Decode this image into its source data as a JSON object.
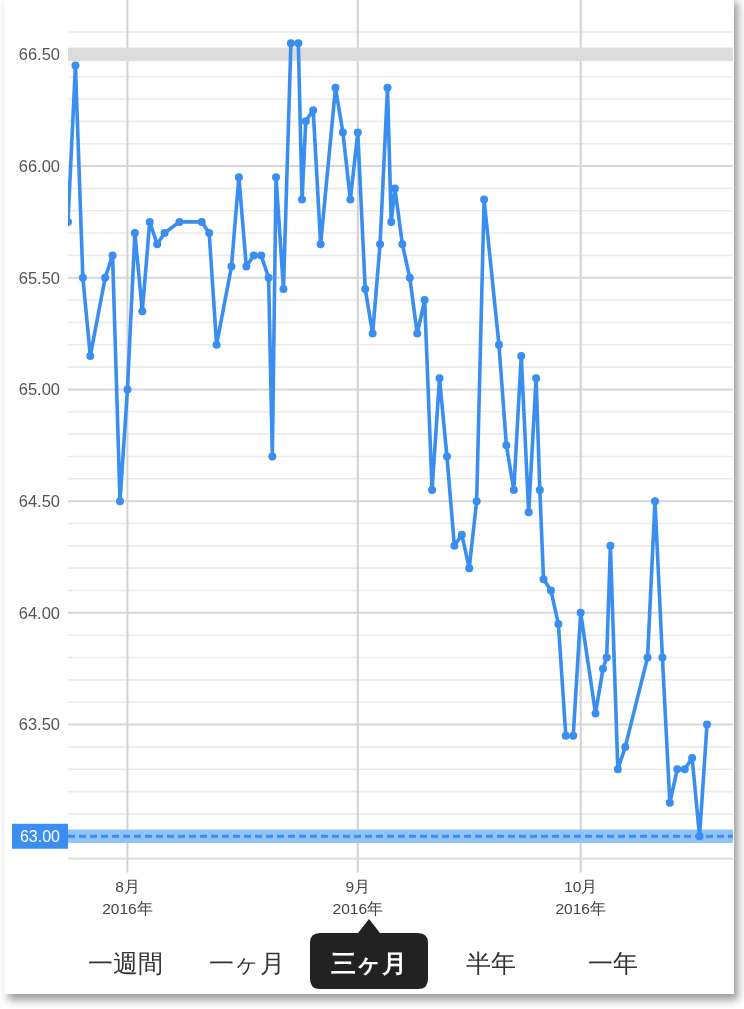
{
  "chart_data": {
    "type": "line",
    "x": [
      "2016-07-24",
      "2016-07-25",
      "2016-07-26",
      "2016-07-27",
      "2016-07-29",
      "2016-07-30",
      "2016-07-31",
      "2016-08-01",
      "2016-08-02",
      "2016-08-03",
      "2016-08-04",
      "2016-08-05",
      "2016-08-06",
      "2016-08-08",
      "2016-08-11",
      "2016-08-12",
      "2016-08-13",
      "2016-08-15",
      "2016-08-16",
      "2016-08-17",
      "2016-08-18",
      "2016-08-19",
      "2016-08-20",
      "2016-08-20T12:00",
      "2016-08-21",
      "2016-08-22",
      "2016-08-23",
      "2016-08-24",
      "2016-08-24T12:00",
      "2016-08-25",
      "2016-08-26",
      "2016-08-27",
      "2016-08-29",
      "2016-08-30",
      "2016-08-31",
      "2016-09-01",
      "2016-09-02",
      "2016-09-03",
      "2016-09-04",
      "2016-09-05",
      "2016-09-05T12:00",
      "2016-09-06",
      "2016-09-07",
      "2016-09-08",
      "2016-09-09",
      "2016-09-10",
      "2016-09-11",
      "2016-09-12",
      "2016-09-13",
      "2016-09-14",
      "2016-09-15",
      "2016-09-16",
      "2016-09-17",
      "2016-09-18",
      "2016-09-20",
      "2016-09-21",
      "2016-09-22",
      "2016-09-23",
      "2016-09-24",
      "2016-09-25",
      "2016-09-25T12:00",
      "2016-09-26",
      "2016-09-27",
      "2016-09-28",
      "2016-09-29",
      "2016-09-30",
      "2016-10-01",
      "2016-10-03",
      "2016-10-04",
      "2016-10-04T12:00",
      "2016-10-05",
      "2016-10-06",
      "2016-10-07",
      "2016-10-10",
      "2016-10-11",
      "2016-10-12",
      "2016-10-13",
      "2016-10-14",
      "2016-10-15",
      "2016-10-16",
      "2016-10-17",
      "2016-10-18"
    ],
    "series": [
      {
        "color": "#3a8ef0",
        "values": [
          65.75,
          66.45,
          65.5,
          65.15,
          65.5,
          65.6,
          64.5,
          65.0,
          65.7,
          65.35,
          65.75,
          65.65,
          65.7,
          65.75,
          65.75,
          65.7,
          65.2,
          65.55,
          65.95,
          65.55,
          65.6,
          65.6,
          65.5,
          64.7,
          65.95,
          65.45,
          66.55,
          66.55,
          65.85,
          66.2,
          66.25,
          65.65,
          66.35,
          66.15,
          65.85,
          66.15,
          65.45,
          65.25,
          65.65,
          66.35,
          65.75,
          65.9,
          65.65,
          65.5,
          65.25,
          65.4,
          64.55,
          65.05,
          64.7,
          64.3,
          64.35,
          64.2,
          64.5,
          65.85,
          65.2,
          64.75,
          64.55,
          65.15,
          64.45,
          65.05,
          64.55,
          64.15,
          64.1,
          63.95,
          63.45,
          63.45,
          64.0,
          63.55,
          63.75,
          63.8,
          64.3,
          63.3,
          63.4,
          63.8,
          64.5,
          63.8,
          63.15,
          63.3,
          63.3,
          63.35,
          63.0,
          63.5
        ]
      }
    ],
    "xlim": [
      "2016-07-24",
      "2016-10-21T12:00"
    ],
    "ylim": [
      62.9,
      66.6
    ],
    "xticks": [
      {
        "value": "2016-08-01",
        "label": "8月\n2016年"
      },
      {
        "value": "2016-09-01",
        "label": "9月\n2016年"
      },
      {
        "value": "2016-10-01",
        "label": "10月\n2016年"
      }
    ],
    "yticks": [
      {
        "value": 63,
        "label": null
      },
      {
        "value": 63.5,
        "label": "63.50"
      },
      {
        "value": 64,
        "label": "64.00"
      },
      {
        "value": 64.5,
        "label": "64.50"
      },
      {
        "value": 65,
        "label": "65.00"
      },
      {
        "value": 65.5,
        "label": "65.50"
      },
      {
        "value": 66,
        "label": "66.00"
      },
      {
        "value": 66.5,
        "label": "66.50"
      }
    ],
    "grid": true,
    "marker": "circle",
    "bands": [
      {
        "axis": "y",
        "from": 66.47,
        "to": 66.53,
        "color": "#dcdcdc"
      },
      {
        "axis": "y",
        "from": 62.97,
        "to": 63.03,
        "color": "#92c3f7"
      }
    ],
    "ref_lines": [
      {
        "axis": "y",
        "value": 63,
        "label": "63.00",
        "color": "#3a8ef0",
        "line_style": "dashed"
      }
    ],
    "annotations": [
      "一週間",
      "一ヶ月",
      "三ヶ月",
      "半年",
      "一年"
    ]
  }
}
